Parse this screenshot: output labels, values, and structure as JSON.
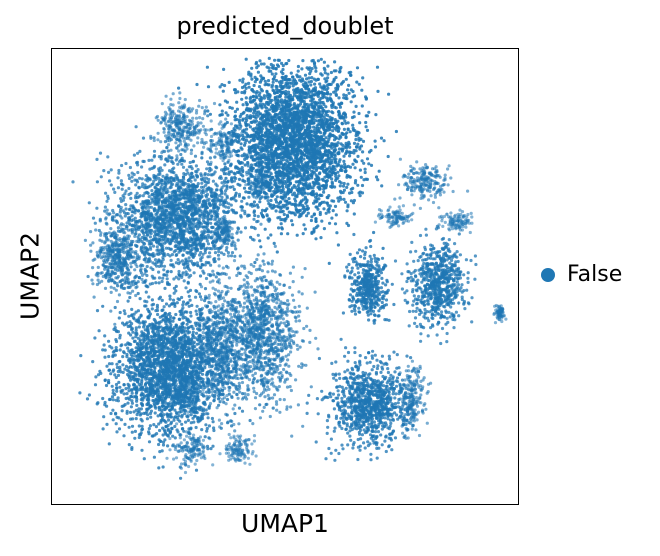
{
  "chart_data": {
    "type": "scatter",
    "title": "predicted_doublet",
    "xlabel": "UMAP1",
    "ylabel": "UMAP2",
    "grid": false,
    "legend_position": "right",
    "series": [
      {
        "name": "False",
        "color": "#1f77b4"
      }
    ],
    "clusters": [
      {
        "x": 0.25,
        "y": 0.7,
        "rx": 0.12,
        "ry": 0.15,
        "density": 0.9
      },
      {
        "x": 0.52,
        "y": 0.2,
        "rx": 0.13,
        "ry": 0.17,
        "density": 1.0
      },
      {
        "x": 0.27,
        "y": 0.37,
        "rx": 0.13,
        "ry": 0.13,
        "density": 0.8
      },
      {
        "x": 0.14,
        "y": 0.46,
        "rx": 0.05,
        "ry": 0.08,
        "density": 0.6
      },
      {
        "x": 0.45,
        "y": 0.63,
        "rx": 0.08,
        "ry": 0.15,
        "density": 0.6
      },
      {
        "x": 0.36,
        "y": 0.65,
        "rx": 0.05,
        "ry": 0.13,
        "density": 0.5
      },
      {
        "x": 0.68,
        "y": 0.78,
        "rx": 0.08,
        "ry": 0.09,
        "density": 0.85
      },
      {
        "x": 0.77,
        "y": 0.77,
        "rx": 0.03,
        "ry": 0.07,
        "density": 0.5
      },
      {
        "x": 0.68,
        "y": 0.52,
        "rx": 0.04,
        "ry": 0.07,
        "density": 0.9
      },
      {
        "x": 0.83,
        "y": 0.52,
        "rx": 0.06,
        "ry": 0.09,
        "density": 0.8
      },
      {
        "x": 0.28,
        "y": 0.17,
        "rx": 0.05,
        "ry": 0.06,
        "density": 0.5
      },
      {
        "x": 0.3,
        "y": 0.88,
        "rx": 0.04,
        "ry": 0.03,
        "density": 0.4
      },
      {
        "x": 0.4,
        "y": 0.88,
        "rx": 0.03,
        "ry": 0.03,
        "density": 0.4
      },
      {
        "x": 0.29,
        "y": 0.74,
        "rx": 0.03,
        "ry": 0.05,
        "density": 0.4
      },
      {
        "x": 0.37,
        "y": 0.21,
        "rx": 0.03,
        "ry": 0.04,
        "density": 0.4
      },
      {
        "x": 0.8,
        "y": 0.29,
        "rx": 0.05,
        "ry": 0.04,
        "density": 0.5
      },
      {
        "x": 0.74,
        "y": 0.37,
        "rx": 0.03,
        "ry": 0.02,
        "density": 0.4
      },
      {
        "x": 0.87,
        "y": 0.38,
        "rx": 0.03,
        "ry": 0.02,
        "density": 0.4
      },
      {
        "x": 0.96,
        "y": 0.58,
        "rx": 0.01,
        "ry": 0.02,
        "density": 0.4
      },
      {
        "x": 0.45,
        "y": 0.29,
        "rx": 0.03,
        "ry": 0.04,
        "density": 0.4
      },
      {
        "x": 0.37,
        "y": 0.4,
        "rx": 0.02,
        "ry": 0.03,
        "density": 0.4
      }
    ]
  }
}
